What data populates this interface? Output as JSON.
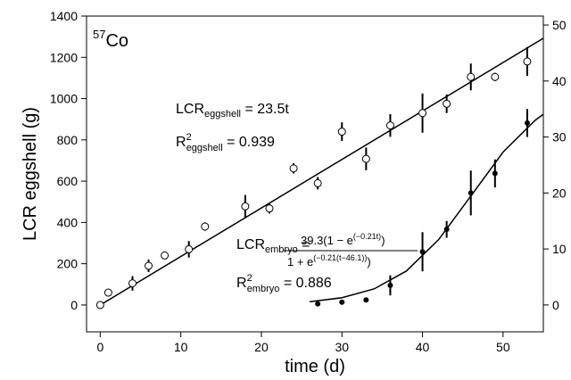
{
  "chart_data": {
    "type": "scatter",
    "x_label": "time (d)",
    "y_label": "LCR eggshell (g)",
    "xlim": [
      -1.7,
      55
    ],
    "xticks": [
      0,
      10,
      20,
      30,
      40,
      50
    ],
    "ylim": [
      -130,
      1400
    ],
    "yticks": [
      0,
      200,
      400,
      600,
      800,
      1000,
      1200,
      1400
    ],
    "y2lim": [
      -4.8,
      51.6
    ],
    "y2ticks": [
      0,
      10,
      20,
      30,
      40,
      50
    ],
    "color": "#000000",
    "series": [
      {
        "axis": "y",
        "marker": "open",
        "x": [
          0,
          1,
          4,
          6,
          8,
          11,
          13,
          18,
          21,
          24,
          27,
          30,
          33,
          36,
          40,
          43,
          46,
          49,
          53
        ],
        "values": [
          0,
          60,
          105,
          190,
          240,
          270,
          380,
          478,
          468,
          662,
          590,
          840,
          708,
          870,
          930,
          975,
          1105,
          1105,
          1180
        ],
        "errors": [
          null,
          null,
          35,
          30,
          null,
          40,
          20,
          55,
          25,
          25,
          30,
          45,
          55,
          55,
          95,
          45,
          65,
          20,
          70
        ]
      },
      {
        "axis": "y2",
        "marker": "filled",
        "x": [
          27,
          30,
          33,
          36,
          40,
          43,
          46,
          49,
          53
        ],
        "values": [
          0.2,
          0.5,
          0.9,
          3.5,
          9.5,
          13.5,
          20,
          23.5,
          32.5
        ],
        "errors": [
          null,
          null,
          null,
          1.8,
          3.5,
          1.5,
          4,
          2.5,
          2.5
        ]
      }
    ],
    "fits": [
      {
        "axis": "y",
        "x": [
          0,
          55
        ],
        "values": [
          0,
          1292.5
        ]
      },
      {
        "axis": "y2",
        "x": [
          26,
          30,
          34,
          38,
          42,
          46,
          50,
          54,
          55
        ],
        "values": [
          0.57,
          1.29,
          2.87,
          6.06,
          11.66,
          19.44,
          27.3,
          33.0,
          34.05
        ]
      }
    ],
    "annotations": {
      "isotope": {
        "mass": "57",
        "symbol": "Co"
      },
      "eggshell_fit": {
        "lhs": "LCR",
        "sub": "eggshell",
        "rhs": " = 23.5t"
      },
      "eggshell_r2": {
        "lhs": "R",
        "sup": "2",
        "sub": "eggshell",
        "rhs": " = 0.939"
      },
      "embryo_fit": {
        "lhs": "LCR",
        "sub": "embryo",
        "eq": " =",
        "numerator": "39.3(1 − e",
        "numerator_sup": "(−0.21t)",
        "numerator_end": ")",
        "denominator": "1 + e",
        "denominator_sup": "(−0.21(t−46.1))",
        "denominator_end": ")"
      },
      "embryo_r2": {
        "lhs": "R",
        "sup": "2",
        "sub": "embryo",
        "rhs": " = 0.886"
      }
    }
  }
}
